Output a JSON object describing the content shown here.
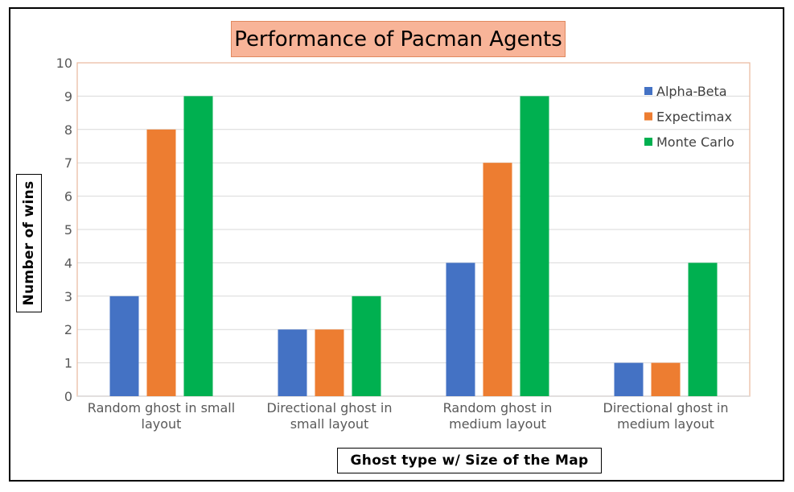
{
  "chart_data": {
    "type": "bar",
    "title": "Performance of Pacman Agents",
    "xlabel": "Ghost type w/ Size of the Map",
    "ylabel": "Number of wins",
    "ylim": [
      0,
      10
    ],
    "yticks": [
      0,
      1,
      2,
      3,
      4,
      5,
      6,
      7,
      8,
      9,
      10
    ],
    "grid": true,
    "legend_position": "top-right",
    "categories": [
      [
        "Random ghost in small",
        "layout"
      ],
      [
        "Directional ghost in",
        "small layout"
      ],
      [
        "Random ghost in",
        "medium layout"
      ],
      [
        "Directional ghost in",
        "medium layout"
      ]
    ],
    "series": [
      {
        "name": "Alpha-Beta",
        "color": "#4472c4",
        "values": [
          3,
          2,
          4,
          1
        ]
      },
      {
        "name": "Expectimax",
        "color": "#ed7d31",
        "values": [
          8,
          2,
          7,
          1
        ]
      },
      {
        "name": "Monte Carlo",
        "color": "#00b050",
        "values": [
          9,
          3,
          9,
          4
        ]
      }
    ]
  }
}
